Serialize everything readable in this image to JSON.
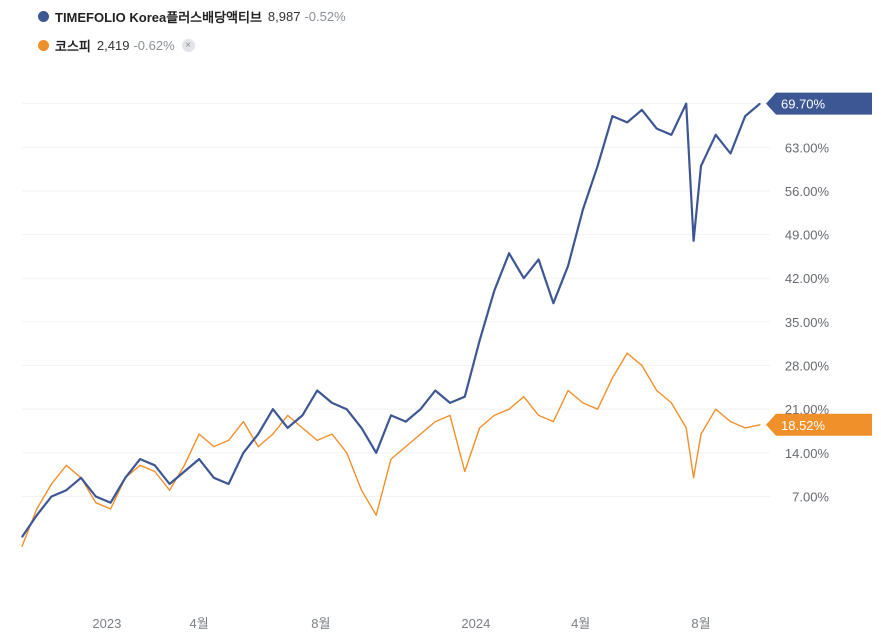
{
  "legend": {
    "series1": {
      "name": "TIMEFOLIO Korea플러스배당액티브",
      "price": "8,987",
      "change": "-0.52%",
      "color": "#3d5694"
    },
    "series2": {
      "name": "코스피",
      "price": "2,419",
      "change": "-0.62%",
      "color": "#f0902a",
      "remove_label": "×"
    }
  },
  "chart_data": {
    "type": "line",
    "title": "",
    "xlabel": "",
    "ylabel": "",
    "y_unit": "%",
    "ylim": [
      -8,
      77
    ],
    "y_ticks": [
      7,
      14,
      21,
      28,
      35,
      42,
      49,
      56,
      63
    ],
    "y_tick_labels": [
      "7.00%",
      "14.00%",
      "21.00%",
      "28.00%",
      "35.00%",
      "42.00%",
      "49.00%",
      "56.00%",
      "63.00%"
    ],
    "x_tick_labels": [
      "2023",
      "4월",
      "8월",
      "2024",
      "4월",
      "8월"
    ],
    "x_tick_positions": [
      0.115,
      0.24,
      0.405,
      0.615,
      0.757,
      0.92
    ],
    "grid": true,
    "series": [
      {
        "name": "TIMEFOLIO Korea플러스배당액티브",
        "color": "#3d5694",
        "last_label": "69.70%",
        "x": [
          0.0,
          0.02,
          0.04,
          0.06,
          0.08,
          0.1,
          0.12,
          0.14,
          0.16,
          0.18,
          0.2,
          0.22,
          0.24,
          0.26,
          0.28,
          0.3,
          0.32,
          0.34,
          0.36,
          0.38,
          0.4,
          0.42,
          0.44,
          0.46,
          0.48,
          0.5,
          0.52,
          0.54,
          0.56,
          0.58,
          0.6,
          0.62,
          0.64,
          0.66,
          0.68,
          0.7,
          0.72,
          0.74,
          0.76,
          0.78,
          0.8,
          0.82,
          0.84,
          0.86,
          0.88,
          0.9,
          0.91,
          0.92,
          0.94,
          0.96,
          0.98,
          1.0
        ],
        "values": [
          0.5,
          4,
          7,
          8,
          10,
          7,
          6,
          10,
          13,
          12,
          9,
          11,
          13,
          10,
          9,
          14,
          17,
          21,
          18,
          20,
          24,
          22,
          21,
          18,
          14,
          20,
          19,
          21,
          24,
          22,
          23,
          32,
          40,
          46,
          42,
          45,
          38,
          44,
          53,
          60,
          68,
          67,
          69,
          66,
          65,
          70,
          48,
          60,
          65,
          62,
          68,
          70
        ]
      },
      {
        "name": "코스피",
        "color": "#f0902a",
        "last_label": "18.52%",
        "x": [
          0.0,
          0.02,
          0.04,
          0.06,
          0.08,
          0.1,
          0.12,
          0.14,
          0.16,
          0.18,
          0.2,
          0.22,
          0.24,
          0.26,
          0.28,
          0.3,
          0.32,
          0.34,
          0.36,
          0.38,
          0.4,
          0.42,
          0.44,
          0.46,
          0.48,
          0.5,
          0.52,
          0.54,
          0.56,
          0.58,
          0.6,
          0.62,
          0.64,
          0.66,
          0.68,
          0.7,
          0.72,
          0.74,
          0.76,
          0.78,
          0.8,
          0.82,
          0.84,
          0.86,
          0.88,
          0.9,
          0.91,
          0.92,
          0.94,
          0.96,
          0.98,
          1.0
        ],
        "values": [
          -1,
          5,
          9,
          12,
          10,
          6,
          5,
          10,
          12,
          11,
          8,
          12,
          17,
          15,
          16,
          19,
          15,
          17,
          20,
          18,
          16,
          17,
          14,
          8,
          4,
          13,
          15,
          17,
          19,
          20,
          11,
          18,
          20,
          21,
          23,
          20,
          19,
          24,
          22,
          21,
          26,
          30,
          28,
          24,
          22,
          18,
          10,
          17,
          21,
          19,
          18,
          18.5
        ]
      }
    ]
  }
}
